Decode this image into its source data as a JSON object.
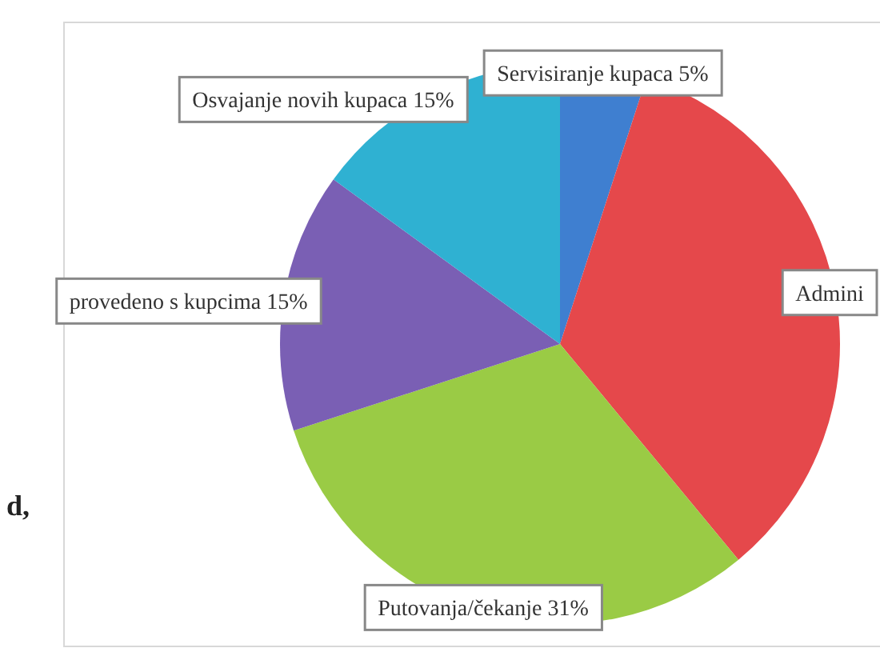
{
  "chart_data": {
    "type": "pie",
    "categories": [
      "Servisiranje kupaca",
      "Admini",
      "Putovanja/čekanje",
      "provedeno s kupcima",
      "Osvajanje novih kupaca"
    ],
    "values": [
      5,
      34,
      31,
      15,
      15
    ],
    "value_labels": [
      "5%",
      null,
      "31%",
      "15%",
      "15%"
    ],
    "colors": [
      "#3f7fd0",
      "#e5484b",
      "#9acb45",
      "#7a5fb4",
      "#2fb1d2"
    ],
    "annotations": [
      "d,"
    ]
  }
}
